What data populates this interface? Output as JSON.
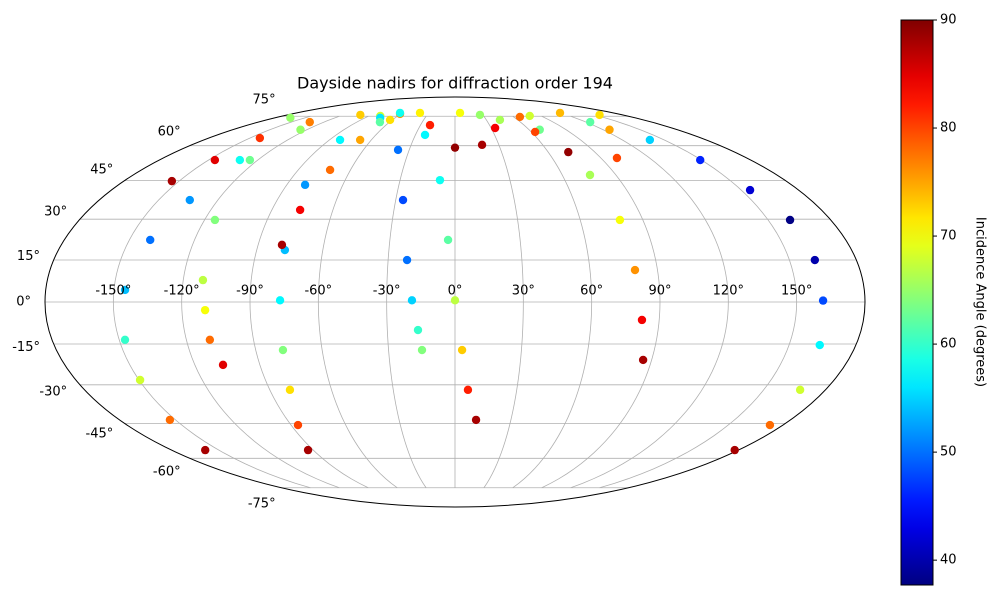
{
  "chart_data": {
    "type": "scatter",
    "projection": "mollweide",
    "title": "Dayside nadirs for diffraction order 194",
    "xlim": [
      -180,
      180
    ],
    "ylim": [
      -90,
      90
    ],
    "xticks": [
      {
        "value": -150,
        "label": "-150°"
      },
      {
        "value": -120,
        "label": "-120°"
      },
      {
        "value": -90,
        "label": "-90°"
      },
      {
        "value": -60,
        "label": "-60°"
      },
      {
        "value": -30,
        "label": "-30°"
      },
      {
        "value": 0,
        "label": "0°"
      },
      {
        "value": 30,
        "label": "30°"
      },
      {
        "value": 60,
        "label": "60°"
      },
      {
        "value": 90,
        "label": "90°"
      },
      {
        "value": 120,
        "label": "120°"
      },
      {
        "value": 150,
        "label": "150°"
      }
    ],
    "yticks": [
      {
        "value": -75,
        "label": "-75°"
      },
      {
        "value": -60,
        "label": "-60°"
      },
      {
        "value": -45,
        "label": "-45°"
      },
      {
        "value": -30,
        "label": "-30°"
      },
      {
        "value": -15,
        "label": "-15°"
      },
      {
        "value": 0,
        "label": "0°"
      },
      {
        "value": 15,
        "label": "15°"
      },
      {
        "value": 30,
        "label": "30°"
      },
      {
        "value": 45,
        "label": "45°"
      },
      {
        "value": 60,
        "label": "60°"
      },
      {
        "value": 75,
        "label": "75°"
      }
    ],
    "grid": true,
    "colormap": "jet",
    "colorbar_label": "Incidence Angle (degrees)",
    "clim": [
      37.7,
      90
    ],
    "cticks": [
      40,
      50,
      60,
      70,
      80,
      90
    ],
    "series": [
      {
        "x": [
          177.6,
          172.9,
          167.7,
          163.8,
          161.6,
          161.4,
          160.5,
          154.6,
          149.2,
          139.7,
          123.7,
          78.2,
          5.7,
          -78.2,
          -125.1,
          -130.9,
          -134.2,
          -140.4,
          -145.1,
          -147.4,
          -149.5,
          -153,
          -158.6
        ],
        "y": [
          -56.3,
          -45.7,
          -31.9,
          -15.4,
          0.5,
          15,
          29.7,
          41.2,
          53.6,
          62.7,
          71.7,
          75.2,
          77,
          75.2,
          67.7,
          53.6,
          37.3,
          22.3,
          4.3,
          -13.5,
          -28.2,
          -43.6,
          -56.3
        ],
        "c": [
          88,
          78,
          68,
          57,
          48,
          40,
          38,
          42,
          46,
          55,
          62,
          68,
          70,
          68,
          65,
          58,
          52,
          50,
          54,
          60,
          68,
          78,
          88
        ]
      },
      {
        "x": [
          -153.9,
          -146.1,
          -142.7,
          -132.9,
          -101.7,
          -60.7,
          -21.7,
          0
        ],
        "y": [
          44.8,
          53.6,
          63.6,
          71.7,
          75.8,
          76.4,
          70.1,
          59.1
        ],
        "c": [
          88,
          85,
          81,
          77,
          73,
          76,
          82,
          89
        ]
      },
      {
        "x": [
          18.5,
          33.3,
          66.2,
          119.4,
          155.3,
          125.1,
          99.9
        ],
        "y": [
          60.4,
          68.6,
          74.6,
          77,
          75.8,
          67.7,
          54.5
        ],
        "c": [
          88,
          84,
          78,
          74,
          72,
          75,
          80
        ]
      },
      {
        "x": [
          -62.5,
          -22.7,
          -8.2,
          -3.2,
          0,
          3.2,
          6.3,
          11.3
        ],
        "y": [
          77,
          65.1,
          45.2,
          22.3,
          0.6,
          -17.2,
          -31.9,
          -43.6
        ],
        "c": [
          58,
          57,
          58,
          62,
          67,
          73,
          82,
          88
        ]
      },
      {
        "x": [
          -74.8,
          -37.3,
          -26.3,
          -21.5,
          -18.9,
          -16.4,
          -14.9
        ],
        "y": [
          74.1,
          58.1,
          37.3,
          15,
          0.6,
          -10,
          -17.2
        ],
        "c": [
          56,
          50,
          48,
          50,
          55,
          60,
          64
        ]
      },
      {
        "x": [
          -68.7,
          -82.4,
          -80.2,
          -77.2,
          -76.8,
          -77.7,
          -80.2,
          -86.2,
          -93.3
        ],
        "y": [
          71.7,
          62.7,
          43.3,
          18.6,
          0.6,
          -17.2,
          -31.9,
          -45.7,
          -56.3
        ],
        "c": [
          62,
          57,
          52,
          54,
          57,
          64,
          72,
          80,
          88
        ]
      },
      {
        "x": [
          -79.1,
          -76.1,
          -71.7,
          -68,
          -62,
          -39.8
        ],
        "y": [
          20.5,
          33.5,
          49.4,
          62.7,
          72.9,
          77
        ],
        "c": [
          88,
          84,
          78,
          75,
          72,
          71
        ]
      },
      {
        "x": [
          -164.6,
          -124.8,
          -115,
          -111.3,
          -109.8,
          -109.5,
          -107
        ],
        "y": [
          74.1,
          53.6,
          29.7,
          7.8,
          -2.9,
          -13.5,
          -22.6
        ],
        "c": [
          65,
          63,
          64,
          67,
          70,
          78,
          85
        ]
      },
      {
        "x": [
          26.8,
          68.6,
          75.5,
          79,
          80,
          82.4,
          86.1
        ],
        "y": [
          75.8,
          67.7,
          47.3,
          29.7,
          11.4,
          -6.4,
          -20.8
        ],
        "c": [
          65,
          63,
          66,
          70,
          76,
          84,
          88
        ]
      },
      {
        "x": [
          42.9,
          63,
          72.9
        ],
        "y": [
          72.9,
          66.6,
          57.1
        ],
        "c": [
          66,
          80,
          89
        ]
      }
    ]
  }
}
